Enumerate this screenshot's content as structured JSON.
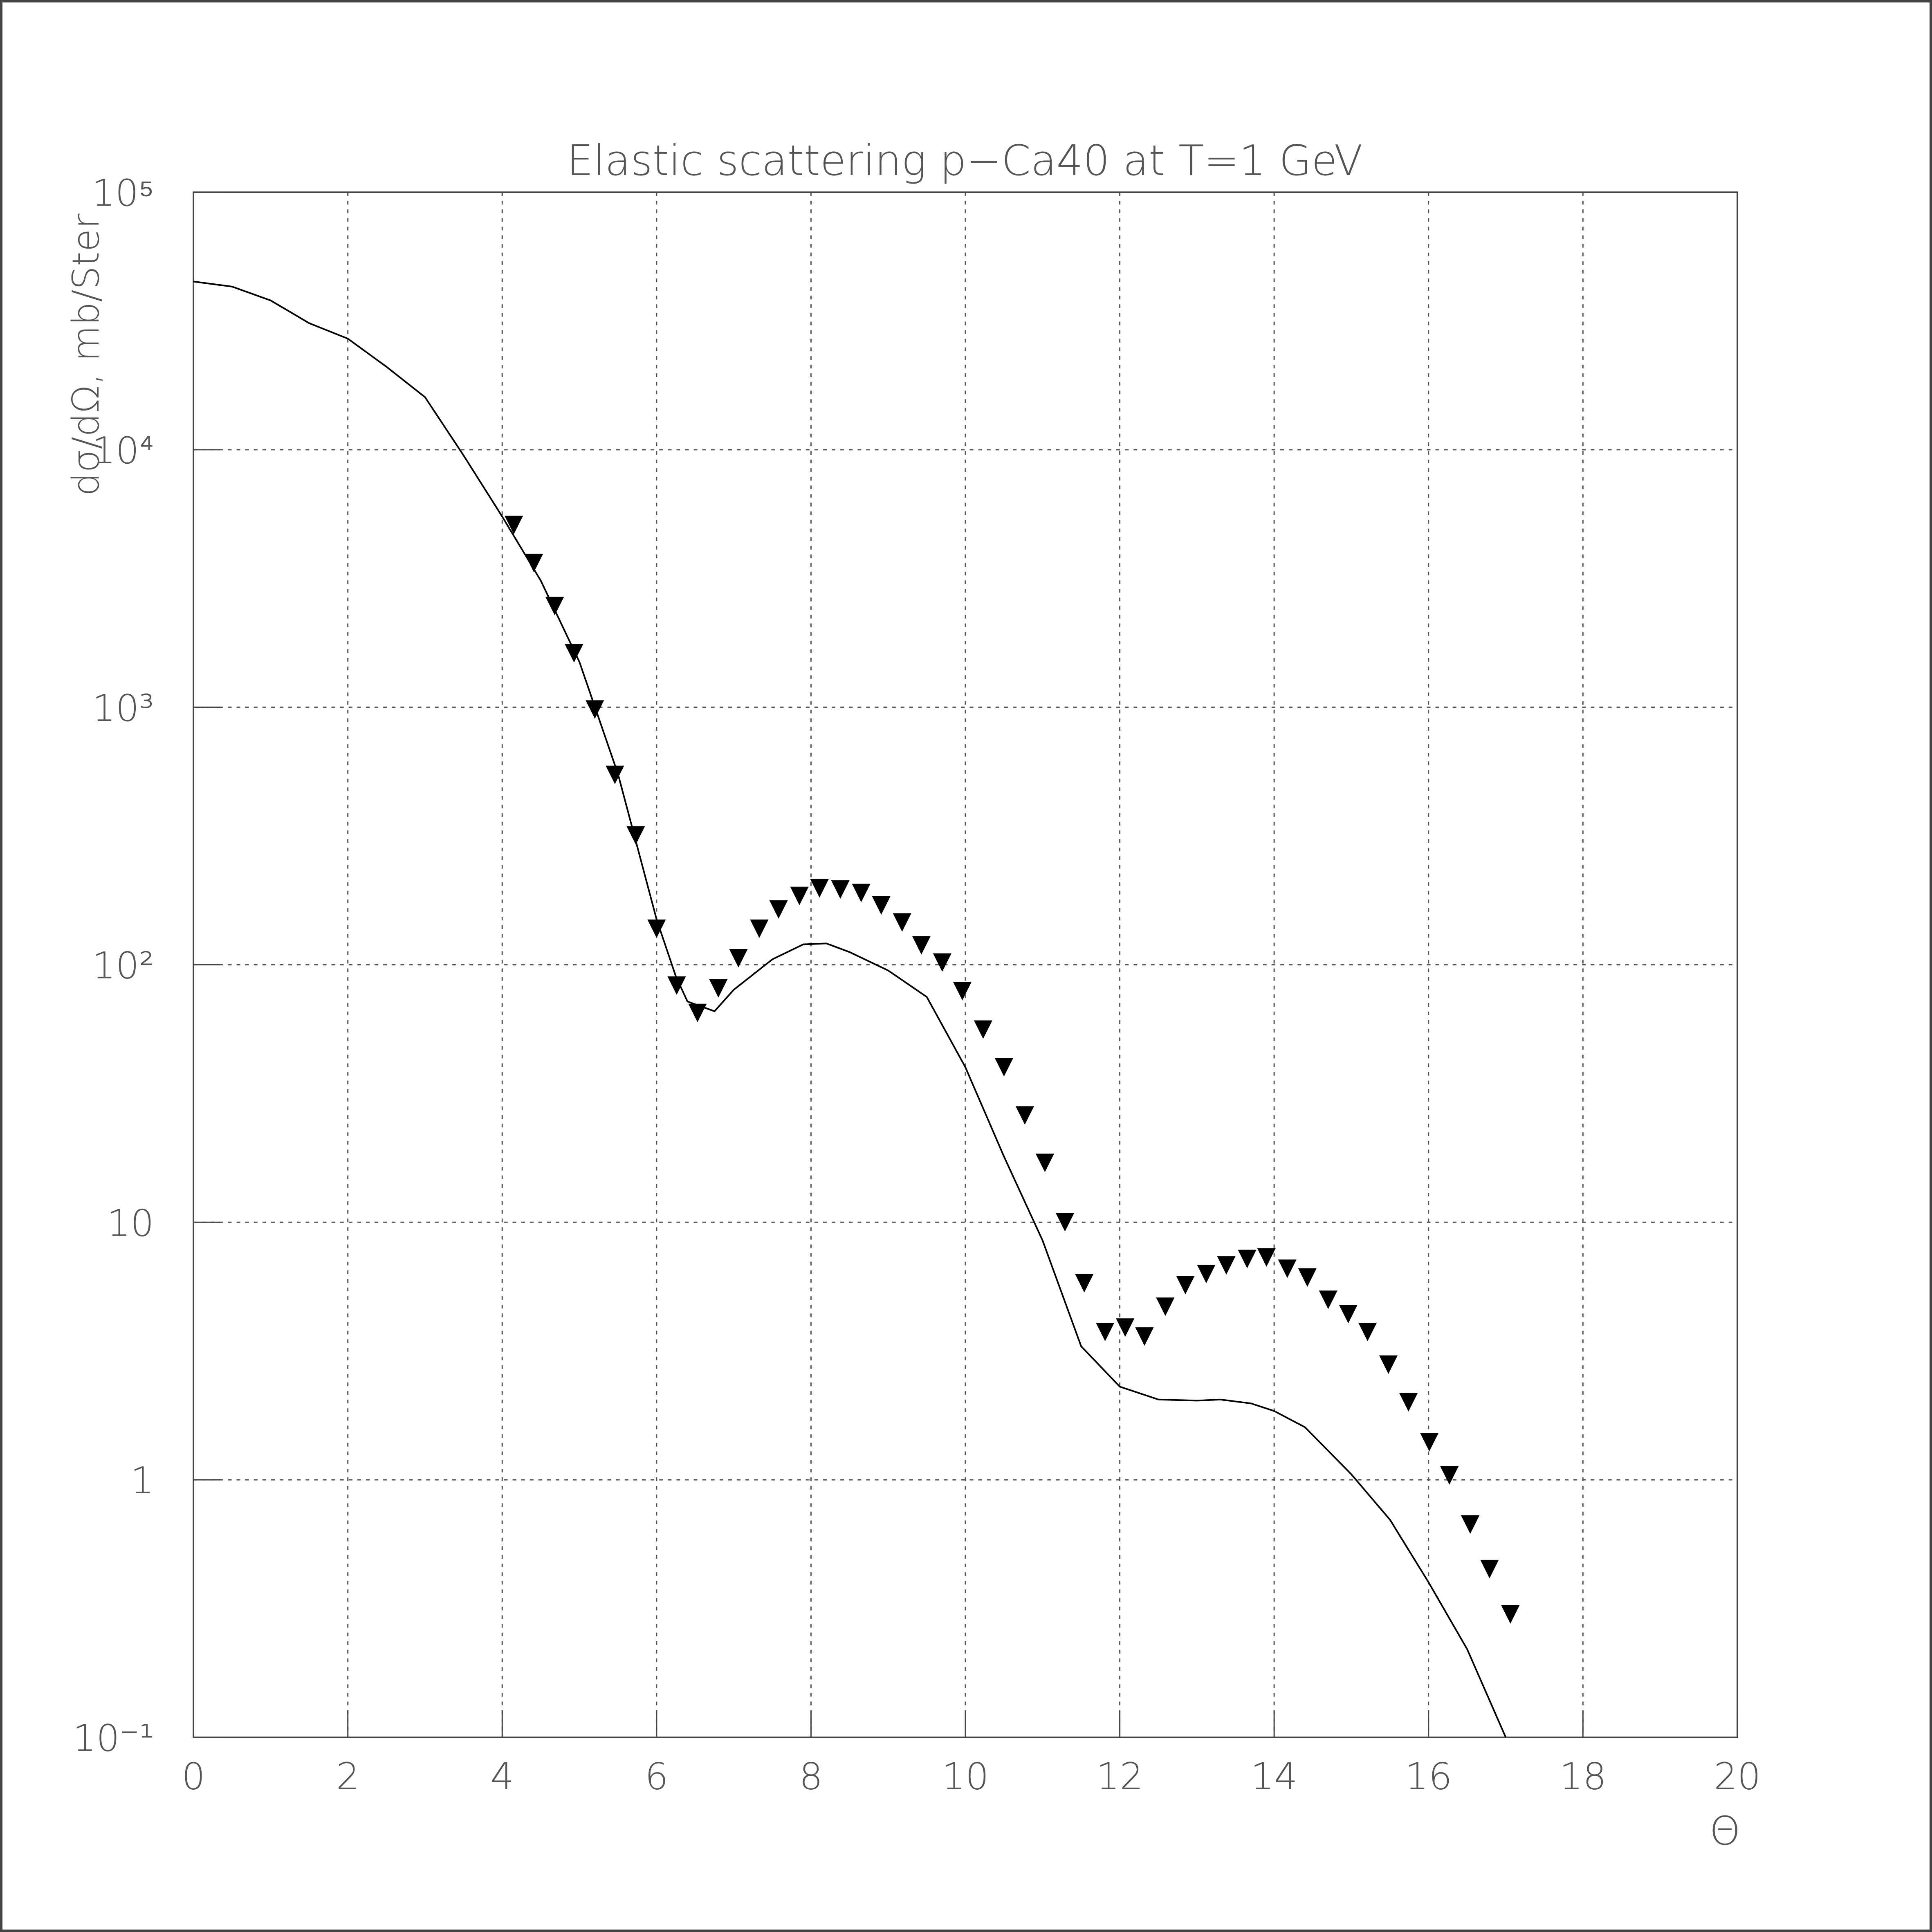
{
  "chart_data": {
    "type": "line",
    "title": "Elastic scattering p−Ca40 at T=1 GeV",
    "y_label": "dσ/dΩ, mb/Ster",
    "x_label": "Θ",
    "ylog": true,
    "grid": true,
    "xlim": [
      0,
      20
    ],
    "xticks": [
      0,
      2,
      4,
      6,
      8,
      10,
      12,
      14,
      16,
      18,
      20
    ],
    "ylim": [
      0.1,
      100000
    ],
    "yticks": [
      {
        "value": 0.1,
        "label": "10⁻¹"
      },
      1,
      10,
      {
        "value": 100,
        "label": "10²"
      },
      {
        "value": 1000,
        "label": "10³"
      },
      {
        "value": 10000,
        "label": "10⁴"
      },
      {
        "value": 100000,
        "label": "10⁵"
      }
    ],
    "series": [
      {
        "style": "line",
        "color": "#000000",
        "x": [
          0,
          0.5,
          1,
          1.5,
          2,
          2.5,
          3,
          3.5,
          4,
          4.5,
          5,
          5.5,
          6,
          6.25,
          6.4,
          6.75,
          7,
          7.5,
          7.9,
          8.2,
          8.5,
          9,
          9.5,
          10,
          10.5,
          11,
          11.5,
          12,
          12.5,
          13,
          13.3,
          13.7,
          14,
          14.4,
          15,
          15.5,
          16,
          16.5,
          17
        ],
        "values": [
          45000,
          43000,
          38000,
          31000,
          27000,
          21000,
          16000,
          9500,
          5500,
          3100,
          1500,
          550,
          150,
          90,
          72,
          66,
          80,
          105,
          120,
          121,
          112,
          95,
          75,
          40,
          18,
          8.5,
          3.3,
          2.3,
          2.05,
          2.03,
          2.05,
          1.98,
          1.85,
          1.6,
          1.05,
          0.7,
          0.4,
          0.22,
          0.1
        ]
      },
      {
        "style": "marker",
        "color": "#000000",
        "x": [
          4.15,
          4.41,
          4.68,
          4.93,
          5.2,
          5.46,
          5.73,
          6.0,
          6.26,
          6.53,
          6.8,
          7.06,
          7.33,
          7.58,
          7.85,
          8.11,
          8.38,
          8.65,
          8.91,
          9.18,
          9.43,
          9.7,
          9.96,
          10.23,
          10.5,
          10.77,
          11.03,
          11.29,
          11.54,
          11.81,
          12.07,
          12.32,
          12.59,
          12.85,
          13.12,
          13.38,
          13.65,
          13.9,
          14.17,
          14.43,
          14.7,
          14.96,
          15.21,
          15.48,
          15.74,
          16.01,
          16.27,
          16.54,
          16.79,
          17.06
        ],
        "values": [
          5100,
          3630,
          2470,
          1620,
          980,
          546,
          318,
          138,
          83,
          65,
          81,
          106,
          138,
          164,
          185,
          198,
          196,
          190,
          170,
          146,
          119,
          102,
          79,
          56,
          40,
          26,
          17,
          10,
          5.8,
          3.75,
          3.9,
          3.6,
          4.7,
          5.7,
          6.3,
          6.8,
          7.2,
          7.3,
          6.6,
          6.1,
          5.0,
          4.4,
          3.75,
          2.8,
          2.0,
          1.4,
          1.04,
          0.67,
          0.45,
          0.3
        ]
      }
    ]
  }
}
